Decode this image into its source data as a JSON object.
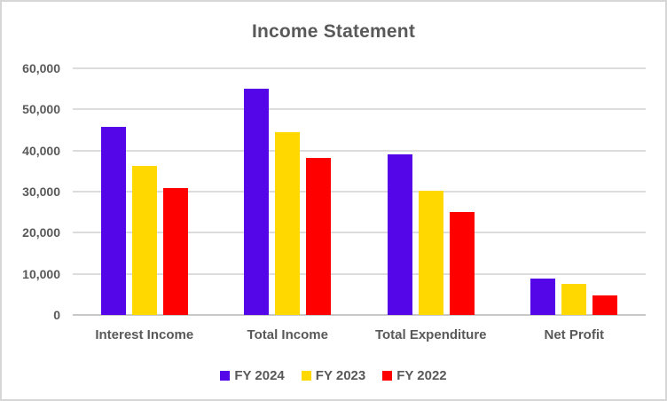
{
  "title": "Income Statement",
  "colors": {
    "fy2024": "#5506e8",
    "fy2023": "#ffd800",
    "fy2022": "#ff0000",
    "gridline": "#dcdcdc",
    "axis_line": "#c8c8c8",
    "text": "#595959",
    "border": "#d6d6d6"
  },
  "y_axis": {
    "ticks": [
      "60,000",
      "50,000",
      "40,000",
      "30,000",
      "20,000",
      "10,000",
      "0"
    ],
    "max": 60000
  },
  "chart_data": {
    "type": "bar",
    "title": "Income Statement",
    "categories": [
      "Interest Income",
      "Total Income",
      "Total Expenditure",
      "Net Profit"
    ],
    "series": [
      {
        "name": "FY 2024",
        "color": "#5506e8",
        "values": [
          45800,
          55000,
          39100,
          8900
        ]
      },
      {
        "name": "FY 2023",
        "color": "#ffd800",
        "values": [
          36300,
          44500,
          30200,
          7600
        ]
      },
      {
        "name": "FY 2022",
        "color": "#ff0000",
        "values": [
          30800,
          38100,
          25100,
          4800
        ]
      }
    ],
    "xlabel": "",
    "ylabel": "",
    "ylim": [
      0,
      60000
    ],
    "grid": true,
    "legend_position": "bottom"
  }
}
